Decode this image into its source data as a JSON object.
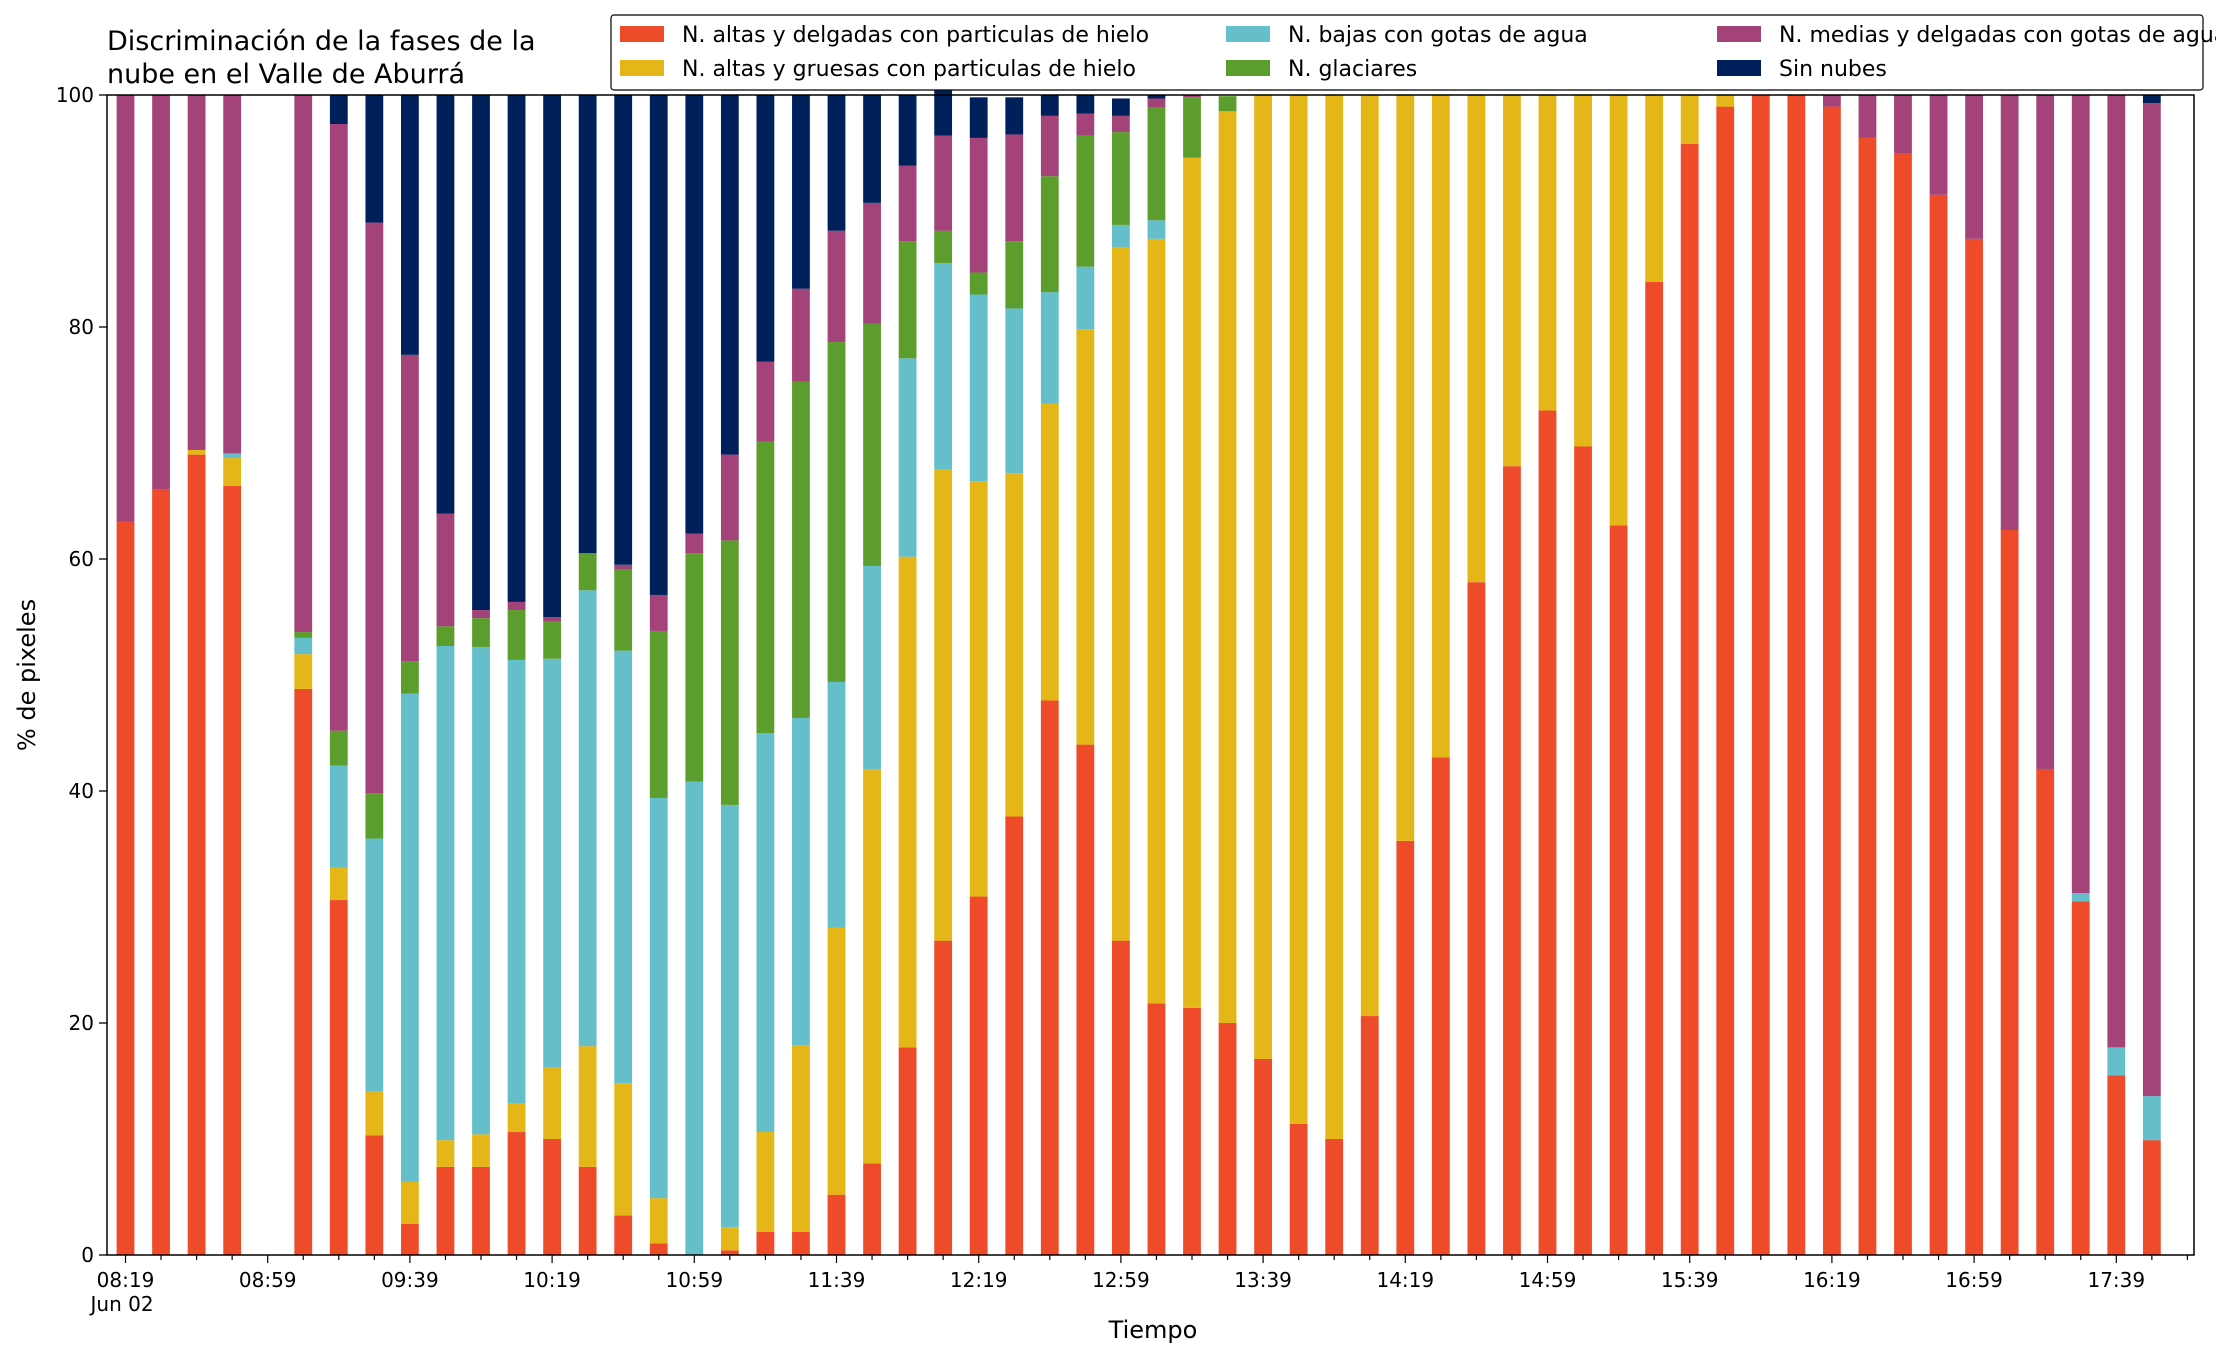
{
  "chart_data": {
    "type": "bar",
    "stacked": true,
    "title_lines": [
      "Discriminación de la fases de la",
      "nube en el Valle de Aburrá"
    ],
    "xlabel": "Tiempo",
    "ylabel": "% de pixeles",
    "ylim": [
      0,
      100
    ],
    "yticks": [
      0,
      20,
      40,
      60,
      80,
      100
    ],
    "x_start": "08:19",
    "x_step_minutes": 10,
    "xtick_labels": [
      {
        "index": 0,
        "lines": [
          "08:19",
          "Jun 02"
        ]
      },
      {
        "index": 4,
        "lines": [
          "08:59"
        ]
      },
      {
        "index": 8,
        "lines": [
          "09:39"
        ]
      },
      {
        "index": 12,
        "lines": [
          "10:19"
        ]
      },
      {
        "index": 16,
        "lines": [
          "10:59"
        ]
      },
      {
        "index": 20,
        "lines": [
          "11:39"
        ]
      },
      {
        "index": 24,
        "lines": [
          "12:19"
        ]
      },
      {
        "index": 28,
        "lines": [
          "12:59"
        ]
      },
      {
        "index": 32,
        "lines": [
          "13:39"
        ]
      },
      {
        "index": 36,
        "lines": [
          "14:19"
        ]
      },
      {
        "index": 40,
        "lines": [
          "14:59"
        ]
      },
      {
        "index": 44,
        "lines": [
          "15:39"
        ]
      },
      {
        "index": 48,
        "lines": [
          "16:19"
        ]
      },
      {
        "index": 52,
        "lines": [
          "16:59"
        ]
      },
      {
        "index": 56,
        "lines": [
          "17:39"
        ]
      }
    ],
    "legend_placement": "top-right",
    "grid": false,
    "series": [
      {
        "name": "N. altas y delgadas con particulas de hielo",
        "color": "#ee4b2b",
        "values": [
          63.2,
          66,
          69,
          66.3,
          null,
          48.8,
          30.6,
          10.3,
          2.7,
          7.6,
          7.6,
          10.6,
          10,
          7.6,
          3.4,
          1,
          0,
          0.4,
          2,
          2,
          5.2,
          7.9,
          17.9,
          27.1,
          30.9,
          37.8,
          47.8,
          44,
          27.1,
          21.7,
          21.3,
          20,
          16.9,
          11.3,
          10,
          20.6,
          35.7,
          42.9,
          58,
          68,
          72.8,
          69.7,
          62.9,
          83.9,
          95.8,
          99,
          100,
          100,
          99,
          96.3,
          95,
          91.4,
          87.6,
          62.5,
          41.9,
          30.5,
          15.5,
          9.9
        ]
      },
      {
        "name": "N. altas y gruesas con particulas de hielo",
        "color": "#e5b617",
        "values": [
          0,
          0,
          0.4,
          2.4,
          null,
          3,
          2.8,
          3.8,
          3.6,
          2.3,
          2.8,
          2.5,
          6.2,
          10.4,
          11.4,
          3.9,
          0,
          2,
          8.6,
          16.1,
          23,
          34,
          42.3,
          40.6,
          35.8,
          29.6,
          25.6,
          35.8,
          59.8,
          65.9,
          73.3,
          78.6,
          83.1,
          88.7,
          90,
          79.4,
          64.3,
          57.1,
          42,
          32,
          27.2,
          30.3,
          37.1,
          16.1,
          4.2,
          1,
          0,
          0,
          0,
          0,
          0,
          0,
          0,
          0,
          0,
          0,
          0,
          0
        ]
      },
      {
        "name": "N. bajas con gotas de agua",
        "color": "#64bfca",
        "values": [
          0,
          0,
          0,
          0.4,
          null,
          1.4,
          8.8,
          21.8,
          42.1,
          42.6,
          42,
          38.2,
          35.2,
          39.3,
          37.3,
          34.5,
          40.8,
          36.4,
          34.4,
          28.2,
          21.2,
          17.5,
          17.1,
          17.8,
          16.1,
          14.2,
          9.6,
          5.4,
          1.9,
          1.6,
          0,
          0,
          0,
          0,
          0,
          0,
          0,
          0,
          0,
          0,
          0,
          0,
          0,
          0,
          0,
          0,
          0,
          0,
          0,
          0,
          0,
          0,
          0,
          0,
          0,
          0.7,
          2.4,
          3.8
        ]
      },
      {
        "name": "N. glaciares",
        "color": "#5c9e2d",
        "values": [
          0,
          0,
          0,
          0,
          null,
          0.5,
          3,
          3.9,
          2.8,
          1.7,
          2.5,
          4.3,
          3.2,
          3.2,
          7,
          14.4,
          19.7,
          22.8,
          25.1,
          29,
          29.3,
          20.9,
          10.1,
          2.8,
          1.9,
          5.8,
          10,
          11.3,
          8,
          9.7,
          5.2,
          1.3,
          0,
          0,
          0,
          0,
          0,
          0,
          0,
          0,
          0,
          0,
          0,
          0,
          0,
          0,
          0,
          0,
          0,
          0,
          0,
          0,
          0,
          0,
          0,
          0,
          0,
          0
        ]
      },
      {
        "name": "N. medias y delgadas con gotas de agua",
        "color": "#a3437a",
        "values": [
          36.8,
          34,
          30.6,
          30.9,
          null,
          46.3,
          52.3,
          49.2,
          26.4,
          9.7,
          0.7,
          0.7,
          0.4,
          0,
          0.4,
          3.1,
          1.7,
          7.4,
          6.9,
          8,
          9.6,
          10.4,
          6.5,
          8.2,
          11.6,
          9.2,
          5.2,
          1.9,
          1.4,
          0.8,
          0.2,
          0,
          0,
          0,
          0,
          0,
          0,
          0,
          0,
          0,
          0,
          0,
          0,
          0,
          0,
          0,
          0,
          0,
          1,
          3.7,
          5,
          8.6,
          12.4,
          37.5,
          58.1,
          68.8,
          82.1,
          85.6
        ]
      },
      {
        "name": "Sin nubes",
        "color": "#00205b",
        "values": [
          0,
          0,
          0,
          0,
          null,
          0,
          2.5,
          11,
          22.4,
          36.1,
          44.4,
          43.7,
          45,
          39.5,
          40.5,
          43.1,
          37.8,
          31,
          23,
          16.7,
          11.7,
          9.3,
          6.1,
          4.3,
          3.5,
          3.2,
          1.8,
          1.6,
          1.5,
          0.3,
          0,
          0,
          0,
          0,
          0,
          0,
          0,
          0,
          0,
          0,
          0,
          0,
          0,
          0,
          0,
          0,
          0,
          0,
          0,
          0,
          0,
          0,
          0,
          0,
          0,
          0,
          0,
          0.7
        ]
      }
    ]
  }
}
